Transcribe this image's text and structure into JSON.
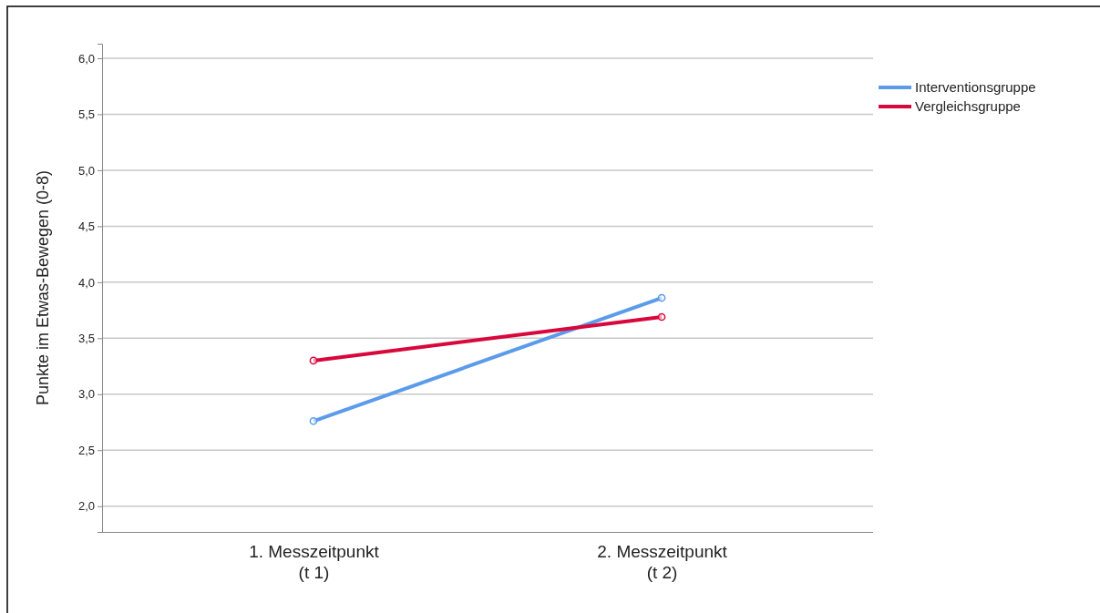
{
  "chart_data": {
    "type": "line",
    "ylabel": "Punkte im Etwas-Bewegen (0-8)",
    "categories": [
      "1. Messzeitpunkt\n(t 1)",
      "2. Messzeitpunkt\n(t 2)"
    ],
    "series": [
      {
        "name": "Interventionsgruppe",
        "color": "#5b9bea",
        "values": [
          2.76,
          3.86
        ]
      },
      {
        "name": "Vergleichsgruppe",
        "color": "#d8073c",
        "values": [
          3.3,
          3.69
        ]
      }
    ],
    "ylim": [
      1.77,
      6.13
    ],
    "yticks": [
      {
        "value": 2,
        "label": "2,0"
      },
      {
        "value": 2.5,
        "label": "2,5"
      },
      {
        "value": 3,
        "label": "3,0"
      },
      {
        "value": 3.5,
        "label": "3,5"
      },
      {
        "value": 4,
        "label": "4,0"
      },
      {
        "value": 4.5,
        "label": "4,5"
      },
      {
        "value": 5,
        "label": "5,0"
      },
      {
        "value": 5.5,
        "label": "5,5"
      },
      {
        "value": 6,
        "label": "6,0"
      }
    ],
    "grid": "y",
    "legend": "top right",
    "marker": "circle",
    "line_style": "solid"
  }
}
